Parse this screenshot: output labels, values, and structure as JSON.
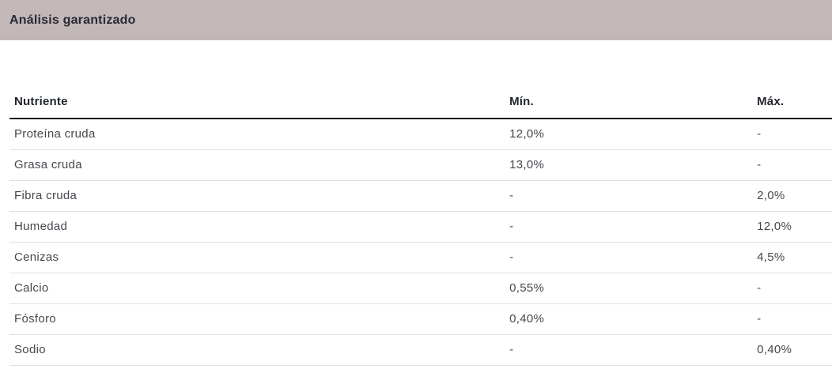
{
  "panel": {
    "title": "Análisis garantizado"
  },
  "colors": {
    "header_bar_bg": "#c2b8b8",
    "title_text": "#262a33",
    "header_text": "#21252c",
    "row_text": "#45484d",
    "header_border": "#1b1b1b",
    "row_border": "#e0e0e0",
    "page_bg": "#ffffff"
  },
  "table": {
    "columns": [
      {
        "key": "nutrient",
        "label": "Nutriente"
      },
      {
        "key": "min",
        "label": "Mín."
      },
      {
        "key": "max",
        "label": "Máx."
      }
    ],
    "rows": [
      {
        "nutrient": "Proteína cruda",
        "min": "12,0%",
        "max": "-"
      },
      {
        "nutrient": "Grasa cruda",
        "min": "13,0%",
        "max": "-"
      },
      {
        "nutrient": "Fibra cruda",
        "min": "-",
        "max": "2,0%"
      },
      {
        "nutrient": "Humedad",
        "min": "-",
        "max": "12,0%"
      },
      {
        "nutrient": "Cenizas",
        "min": "-",
        "max": "4,5%"
      },
      {
        "nutrient": "Calcio",
        "min": "0,55%",
        "max": "-"
      },
      {
        "nutrient": "Fósforo",
        "min": "0,40%",
        "max": "-"
      },
      {
        "nutrient": "Sodio",
        "min": "-",
        "max": "0,40%"
      }
    ]
  }
}
